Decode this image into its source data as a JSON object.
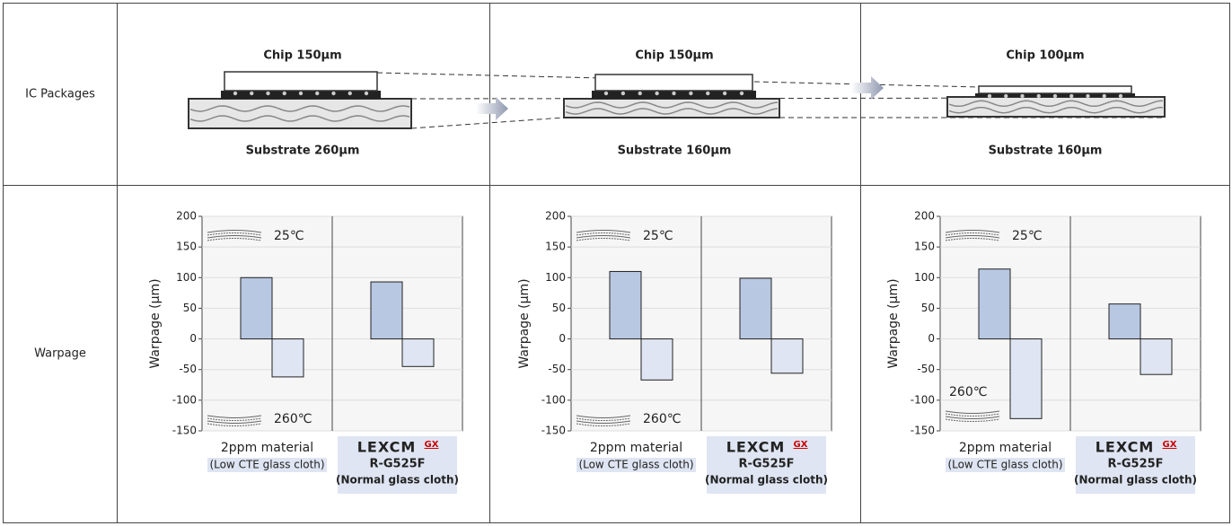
{
  "row_headers": [
    "IC Packages",
    "Warpage"
  ],
  "packages": [
    {
      "chip": "Chip 150μm",
      "substrate": "Substrate 260μm"
    },
    {
      "chip": "Chip 150μm",
      "substrate": "Substrate 160μm"
    },
    {
      "chip": "Chip 100μm",
      "substrate": "Substrate 160μm"
    }
  ],
  "chart_data": [
    {
      "type": "bar",
      "ylabel": "Warpage (μm)",
      "ylim": [
        -150,
        200
      ],
      "yticks": [
        -150,
        -100,
        -50,
        0,
        50,
        100,
        150,
        200
      ],
      "grid": true,
      "categories": [
        "2ppm material",
        "R-G525F"
      ],
      "category_notes": [
        "(Low CTE glass cloth)",
        "(Normal glass cloth)"
      ],
      "brand": "LEXCM",
      "brand_sub": "GX",
      "series": [
        {
          "name": "25℃",
          "color": "#b8c8e2",
          "values": [
            100,
            93
          ]
        },
        {
          "name": "260℃",
          "color": "#dfe5f2",
          "values": [
            -62,
            -45
          ]
        }
      ]
    },
    {
      "type": "bar",
      "ylabel": "Warpage (μm)",
      "ylim": [
        -150,
        200
      ],
      "yticks": [
        -150,
        -100,
        -50,
        0,
        50,
        100,
        150,
        200
      ],
      "grid": true,
      "categories": [
        "2ppm material",
        "R-G525F"
      ],
      "category_notes": [
        "(Low CTE glass cloth)",
        "(Normal glass cloth)"
      ],
      "brand": "LEXCM",
      "brand_sub": "GX",
      "series": [
        {
          "name": "25℃",
          "color": "#b8c8e2",
          "values": [
            110,
            99
          ]
        },
        {
          "name": "260℃",
          "color": "#dfe5f2",
          "values": [
            -67,
            -56
          ]
        }
      ]
    },
    {
      "type": "bar",
      "ylabel": "Warpage (μm)",
      "ylim": [
        -150,
        200
      ],
      "yticks": [
        -150,
        -100,
        -50,
        0,
        50,
        100,
        150,
        200
      ],
      "grid": true,
      "categories": [
        "2ppm material",
        "R-G525F"
      ],
      "category_notes": [
        "(Low CTE glass cloth)",
        "(Normal glass cloth)"
      ],
      "brand": "LEXCM",
      "brand_sub": "GX",
      "series": [
        {
          "name": "25℃",
          "color": "#b8c8e2",
          "values": [
            114,
            57
          ]
        },
        {
          "name": "260℃",
          "color": "#dfe5f2",
          "values": [
            -130,
            -58
          ]
        }
      ]
    }
  ]
}
